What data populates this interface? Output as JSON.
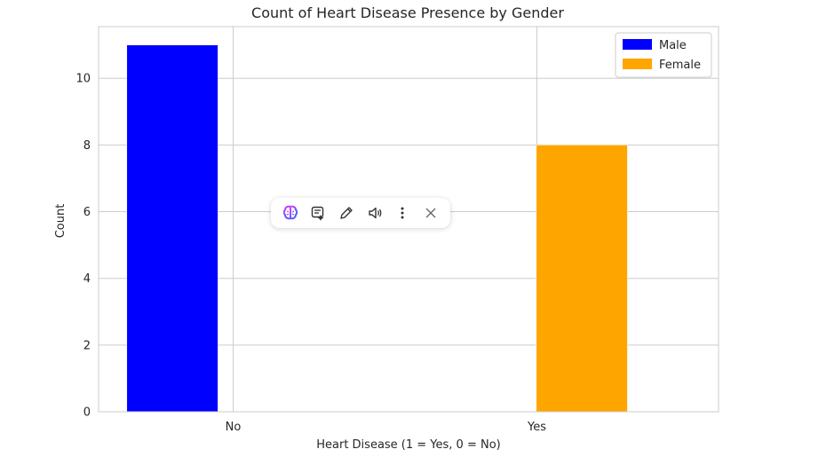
{
  "chart_data": {
    "type": "bar",
    "title": "Count of Heart Disease Presence by Gender",
    "xlabel": "Heart Disease (1 = Yes, 0 = No)",
    "ylabel": "Count",
    "categories": [
      "No",
      "Yes"
    ],
    "series": [
      {
        "name": "Male",
        "values": [
          11,
          0
        ],
        "color": "#0000ff"
      },
      {
        "name": "Female",
        "values": [
          0,
          8
        ],
        "color": "#ffa500"
      }
    ],
    "ylim": [
      0,
      11.55
    ],
    "yticks": [
      0,
      2,
      4,
      6,
      8,
      10
    ],
    "grid": true,
    "legend_position": "top-right"
  },
  "toolbar": {
    "items": [
      {
        "name": "brain-icon"
      },
      {
        "name": "summarize-icon"
      },
      {
        "name": "pencil-icon"
      },
      {
        "name": "speaker-icon"
      },
      {
        "name": "more-vertical-icon"
      },
      {
        "name": "close-icon"
      }
    ]
  }
}
